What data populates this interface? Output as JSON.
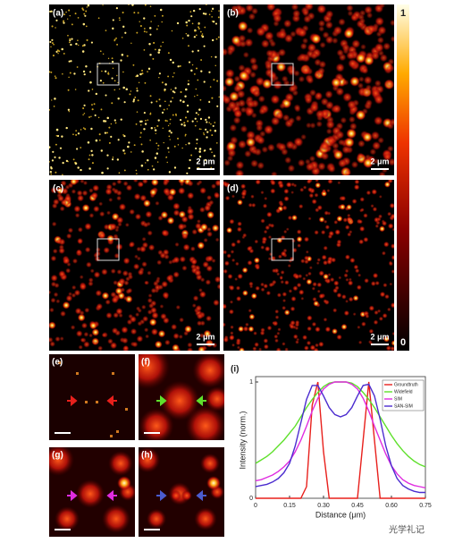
{
  "panels": [
    {
      "label": "(a)",
      "scale_bar": "2 μm"
    },
    {
      "label": "(b)",
      "scale_bar": "2 μm"
    },
    {
      "label": "(c)",
      "scale_bar": "2 μm"
    },
    {
      "label": "(d)",
      "scale_bar": "2 μm"
    }
  ],
  "colorbar": {
    "max_label": "1",
    "min_label": "0"
  },
  "small_panels": [
    {
      "label": "(e)"
    },
    {
      "label": "(f)"
    },
    {
      "label": "(g)"
    },
    {
      "label": "(h)"
    }
  ],
  "chart_panel_label": "(i)",
  "chart_data": {
    "type": "line",
    "x_label": "Distance (μm)",
    "y_label": "Intensity (norm.)",
    "x": [
      0,
      0.025,
      0.05,
      0.075,
      0.1,
      0.125,
      0.15,
      0.175,
      0.2,
      0.225,
      0.25,
      0.275,
      0.3,
      0.325,
      0.35,
      0.375,
      0.4,
      0.425,
      0.45,
      0.475,
      0.5,
      0.525,
      0.55,
      0.575,
      0.6,
      0.625,
      0.65,
      0.675,
      0.7,
      0.725,
      0.75
    ],
    "series": [
      {
        "name": "Groundtruth",
        "color": "#e8201c",
        "values": [
          0,
          0,
          0,
          0,
          0,
          0,
          0,
          0,
          0,
          0.1,
          0.8,
          1,
          0.4,
          0,
          0,
          0,
          0,
          0,
          0,
          0.5,
          1,
          0.5,
          0,
          0,
          0,
          0,
          0,
          0,
          0,
          0,
          0
        ]
      },
      {
        "name": "Widefield",
        "color": "#5fe02c",
        "values": [
          0.3,
          0.33,
          0.36,
          0.4,
          0.45,
          0.5,
          0.56,
          0.62,
          0.7,
          0.78,
          0.85,
          0.91,
          0.96,
          0.99,
          1,
          1,
          1,
          0.99,
          0.96,
          0.91,
          0.85,
          0.78,
          0.7,
          0.62,
          0.54,
          0.47,
          0.41,
          0.36,
          0.32,
          0.29,
          0.27
        ]
      },
      {
        "name": "SIM",
        "color": "#e02ce0",
        "values": [
          0.15,
          0.16,
          0.18,
          0.2,
          0.23,
          0.27,
          0.32,
          0.4,
          0.5,
          0.62,
          0.75,
          0.86,
          0.94,
          0.98,
          1,
          1,
          1,
          0.98,
          0.94,
          0.86,
          0.75,
          0.62,
          0.5,
          0.38,
          0.28,
          0.21,
          0.16,
          0.13,
          0.11,
          0.1,
          0.09
        ]
      },
      {
        "name": "SAN-SIM",
        "color": "#4b2ccf",
        "values": [
          0.1,
          0.11,
          0.12,
          0.14,
          0.17,
          0.22,
          0.3,
          0.45,
          0.65,
          0.85,
          0.97,
          0.97,
          0.88,
          0.78,
          0.72,
          0.7,
          0.72,
          0.78,
          0.88,
          0.97,
          0.98,
          0.88,
          0.68,
          0.45,
          0.28,
          0.17,
          0.11,
          0.08,
          0.06,
          0.05,
          0.05
        ]
      }
    ],
    "xlim": [
      0,
      0.75
    ],
    "ylim": [
      0,
      1
    ],
    "xticks": [
      0,
      0.15,
      {
        "value": 0.3,
        "label": "0.30"
      },
      0.45,
      {
        "value": 0.6,
        "label": "0.60"
      },
      0.75
    ],
    "yticks": [
      0,
      1
    ],
    "legend": "upper right"
  },
  "watermark": "光学礼记"
}
